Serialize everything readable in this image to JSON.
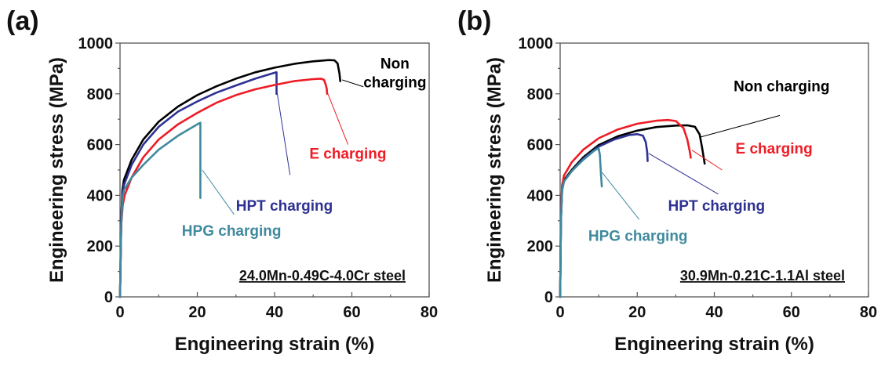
{
  "chart_data": [
    {
      "type": "line",
      "panel_label": "(a)",
      "title": "",
      "annotation": "24.0Mn-0.49C-4.0Cr steel",
      "xlabel": "Engineering strain (%)",
      "ylabel": "Engineering stress (MPa)",
      "xlim": [
        0,
        80
      ],
      "ylim": [
        0,
        1000
      ],
      "xticks": [
        0,
        20,
        40,
        60,
        80
      ],
      "yticks": [
        0,
        200,
        400,
        600,
        800,
        1000
      ],
      "x_minor_step": 10,
      "y_minor_step": 100,
      "grid": false,
      "series": [
        {
          "name": "Non charging",
          "label_lines": [
            "Non",
            "charging"
          ],
          "color": "#000000",
          "points": [
            [
              0,
              0
            ],
            [
              0.3,
              300
            ],
            [
              0.6,
              420
            ],
            [
              1,
              460
            ],
            [
              3,
              540
            ],
            [
              6,
              620
            ],
            [
              10,
              690
            ],
            [
              15,
              750
            ],
            [
              20,
              795
            ],
            [
              25,
              830
            ],
            [
              30,
              860
            ],
            [
              35,
              885
            ],
            [
              40,
              903
            ],
            [
              45,
              918
            ],
            [
              50,
              928
            ],
            [
              54,
              933
            ],
            [
              55.5,
              932
            ],
            [
              56.3,
              920
            ],
            [
              56.8,
              880
            ],
            [
              57,
              850
            ]
          ],
          "label_anchor": [
            62,
            900
          ],
          "leader_from": [
            57.5,
            855
          ],
          "leader_to": [
            63,
            828
          ]
        },
        {
          "name": "HPT charging",
          "label_lines": [
            "HPT charging"
          ],
          "color": "#2e3192",
          "points": [
            [
              0,
              0
            ],
            [
              0.3,
              300
            ],
            [
              0.6,
              400
            ],
            [
              1,
              440
            ],
            [
              3,
              520
            ],
            [
              6,
              600
            ],
            [
              10,
              670
            ],
            [
              15,
              730
            ],
            [
              20,
              770
            ],
            [
              25,
              805
            ],
            [
              30,
              833
            ],
            [
              35,
              860
            ],
            [
              40,
              883
            ],
            [
              40.5,
              885
            ],
            [
              40.5,
              800
            ]
          ],
          "label_anchor": [
            30,
            340
          ],
          "leader_from": [
            40.5,
            820
          ],
          "leader_to": [
            44,
            480
          ]
        },
        {
          "name": "E charging",
          "label_lines": [
            "E charging"
          ],
          "color": "#ee1c25",
          "points": [
            [
              0,
              0
            ],
            [
              0.3,
              280
            ],
            [
              0.7,
              360
            ],
            [
              1.2,
              400
            ],
            [
              3,
              470
            ],
            [
              6,
              550
            ],
            [
              10,
              620
            ],
            [
              15,
              680
            ],
            [
              20,
              725
            ],
            [
              25,
              765
            ],
            [
              30,
              795
            ],
            [
              35,
              818
            ],
            [
              40,
              835
            ],
            [
              45,
              850
            ],
            [
              50,
              858
            ],
            [
              52,
              860
            ],
            [
              52.8,
              855
            ],
            [
              53.2,
              838
            ],
            [
              53.5,
              820
            ],
            [
              53.6,
              800
            ]
          ],
          "label_anchor": [
            49,
            545
          ],
          "leader_from": [
            53.8,
            800
          ],
          "leader_to": [
            59,
            600
          ]
        },
        {
          "name": "HPG charging",
          "label_lines": [
            "HPG charging"
          ],
          "color": "#3f8a9e",
          "points": [
            [
              0,
              0
            ],
            [
              0.3,
              280
            ],
            [
              0.6,
              380
            ],
            [
              1,
              420
            ],
            [
              3,
              470
            ],
            [
              6,
              520
            ],
            [
              10,
              580
            ],
            [
              15,
              635
            ],
            [
              20,
              680
            ],
            [
              20.8,
              686
            ],
            [
              20.8,
              390
            ]
          ],
          "label_anchor": [
            16,
            240
          ],
          "leader_from": [
            21.3,
            500
          ],
          "leader_to": [
            29.5,
            325
          ]
        }
      ]
    },
    {
      "type": "line",
      "panel_label": "(b)",
      "title": "",
      "annotation": "30.9Mn-0.21C-1.1Al steel",
      "xlabel": "Engineering strain (%)",
      "ylabel": "Engineering stress (MPa)",
      "xlim": [
        0,
        80
      ],
      "ylim": [
        0,
        1000
      ],
      "xticks": [
        0,
        20,
        40,
        60,
        80
      ],
      "yticks": [
        0,
        200,
        400,
        600,
        800,
        1000
      ],
      "x_minor_step": 10,
      "y_minor_step": 100,
      "grid": false,
      "series": [
        {
          "name": "Non charging",
          "label_lines": [
            "Non charging"
          ],
          "color": "#000000",
          "points": [
            [
              0,
              0
            ],
            [
              0.2,
              300
            ],
            [
              0.5,
              430
            ],
            [
              1,
              460
            ],
            [
              3,
              500
            ],
            [
              6,
              550
            ],
            [
              10,
              598
            ],
            [
              15,
              633
            ],
            [
              20,
              655
            ],
            [
              25,
              669
            ],
            [
              30,
              675
            ],
            [
              33,
              676
            ],
            [
              35,
              670
            ],
            [
              36.2,
              640
            ],
            [
              36.8,
              590
            ],
            [
              37.3,
              545
            ],
            [
              37.5,
              525
            ]
          ],
          "label_anchor": [
            45,
            810
          ],
          "leader_from": [
            36.5,
            630
          ],
          "leader_to": [
            57,
            715
          ]
        },
        {
          "name": "E charging",
          "label_lines": [
            "E charging"
          ],
          "color": "#ee1c25",
          "points": [
            [
              0,
              0
            ],
            [
              0.2,
              320
            ],
            [
              0.5,
              440
            ],
            [
              1,
              478
            ],
            [
              3,
              530
            ],
            [
              6,
              580
            ],
            [
              10,
              625
            ],
            [
              15,
              660
            ],
            [
              20,
              682
            ],
            [
              25,
              694
            ],
            [
              28,
              697
            ],
            [
              30,
              693
            ],
            [
              32,
              665
            ],
            [
              33,
              620
            ],
            [
              33.6,
              575
            ],
            [
              33.9,
              548
            ]
          ],
          "label_anchor": [
            45.5,
            565
          ],
          "leader_from": [
            34.2,
            578
          ],
          "leader_to": [
            42,
            500
          ]
        },
        {
          "name": "HPT charging",
          "label_lines": [
            "HPT charging"
          ],
          "color": "#2e3192",
          "points": [
            [
              0,
              0
            ],
            [
              0.2,
              300
            ],
            [
              0.5,
              420
            ],
            [
              1,
              455
            ],
            [
              3,
              495
            ],
            [
              6,
              545
            ],
            [
              10,
              592
            ],
            [
              14,
              620
            ],
            [
              18,
              638
            ],
            [
              20,
              641
            ],
            [
              21.5,
              635
            ],
            [
              22.2,
              610
            ],
            [
              22.6,
              570
            ],
            [
              22.7,
              535
            ]
          ],
          "label_anchor": [
            28,
            340
          ],
          "leader_from": [
            23,
            565
          ],
          "leader_to": [
            41,
            405
          ]
        },
        {
          "name": "HPG charging",
          "label_lines": [
            "HPG charging"
          ],
          "color": "#3f8a9e",
          "points": [
            [
              0,
              0
            ],
            [
              0.2,
              300
            ],
            [
              0.5,
              420
            ],
            [
              1,
              455
            ],
            [
              3,
              495
            ],
            [
              6,
              540
            ],
            [
              9,
              578
            ],
            [
              10,
              585
            ],
            [
              10.3,
              560
            ],
            [
              10.6,
              480
            ],
            [
              10.8,
              435
            ]
          ],
          "label_anchor": [
            7.3,
            220
          ],
          "leader_from": [
            10.9,
            490
          ],
          "leader_to": [
            20.5,
            305
          ]
        }
      ]
    }
  ]
}
